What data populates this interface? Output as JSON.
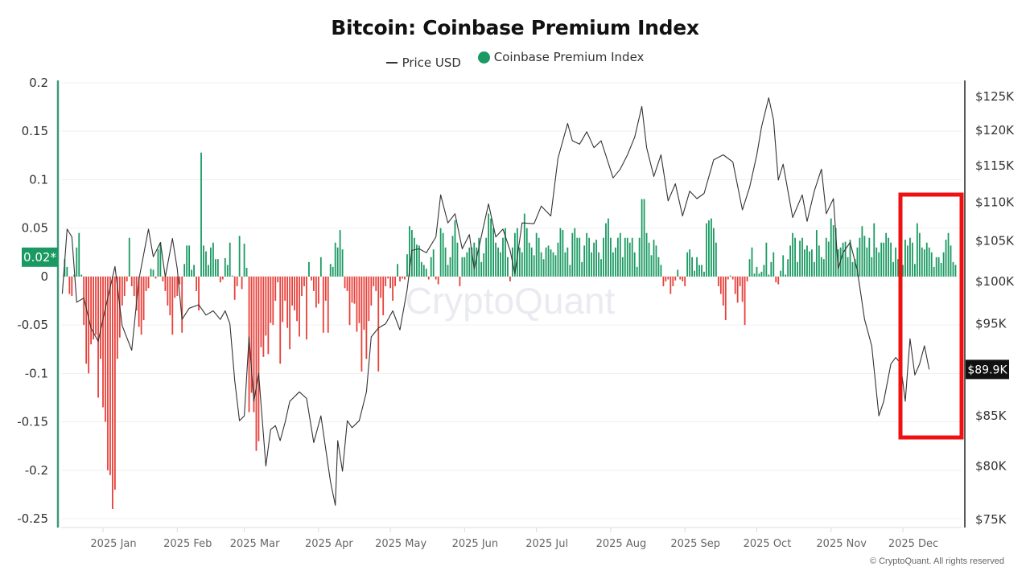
{
  "chart_data": {
    "type": "bar+line",
    "title": "Bitcoin: Coinbase Premium Index",
    "legend": [
      {
        "name": "Price USD",
        "style": "line",
        "color": "#333333"
      },
      {
        "name": "Coinbase Premium Index",
        "style": "dot",
        "color": "#1a9a62"
      }
    ],
    "legend_placement": "top-center",
    "left_axis": {
      "label": "Coinbase Premium Index",
      "ylim": [
        -0.25,
        0.2
      ],
      "ticks": [
        "0.2",
        "0.15",
        "0.1",
        "0.05",
        "0",
        "-0.05",
        "-0.1",
        "-0.15",
        "-0.2",
        "-0.25"
      ],
      "tick_values": [
        0.2,
        0.15,
        0.1,
        0.05,
        0,
        -0.05,
        -0.1,
        -0.15,
        -0.2,
        -0.25
      ],
      "current_badge": "0.02*",
      "current_badge_value": 0.02,
      "badge_color": "#1a9a62"
    },
    "right_axis": {
      "label": "Price USD",
      "scale": "log",
      "ylim": [
        75000,
        127000
      ],
      "ticks": [
        "$125K",
        "$120K",
        "$115K",
        "$110K",
        "$105K",
        "$100K",
        "$95K",
        "$85K",
        "$80K",
        "$75K"
      ],
      "tick_values": [
        125000,
        120000,
        115000,
        110000,
        105000,
        100000,
        95000,
        85000,
        80000,
        75000
      ],
      "current_badge": "$89.9K",
      "current_badge_value": 89900
    },
    "x_axis": {
      "ticks": [
        "2025 Jan",
        "2025 Feb",
        "2025 Mar",
        "2025 Apr",
        "2025 May",
        "2025 Jun",
        "2025 Jul",
        "2025 Aug",
        "2025 Sep",
        "2025 Oct",
        "2025 Nov",
        "2025 Dec"
      ],
      "tick_dates": [
        "2025-01-01",
        "2025-02-01",
        "2025-03-01",
        "2025-04-01",
        "2025-05-01",
        "2025-06-01",
        "2025-07-01",
        "2025-08-01",
        "2025-09-01",
        "2025-10-01",
        "2025-11-01",
        "2025-12-01"
      ],
      "start_date": "2024-12-15",
      "end_date": "2025-12-21"
    },
    "series": [
      {
        "name": "Price USD",
        "type": "line",
        "axis": "right",
        "color": "#333333",
        "points": [
          [
            "2024-12-15",
            98500
          ],
          [
            "2024-12-17",
            106500
          ],
          [
            "2024-12-19",
            105500
          ],
          [
            "2024-12-21",
            97500
          ],
          [
            "2024-12-24",
            98000
          ],
          [
            "2024-12-27",
            94500
          ],
          [
            "2024-12-30",
            93000
          ],
          [
            "2025-01-02",
            96800
          ],
          [
            "2025-01-06",
            101800
          ],
          [
            "2025-01-09",
            94800
          ],
          [
            "2025-01-13",
            92000
          ],
          [
            "2025-01-16",
            100200
          ],
          [
            "2025-01-20",
            106500
          ],
          [
            "2025-01-22",
            103000
          ],
          [
            "2025-01-25",
            104800
          ],
          [
            "2025-01-27",
            100500
          ],
          [
            "2025-01-30",
            105300
          ],
          [
            "2025-02-01",
            101500
          ],
          [
            "2025-02-03",
            95500
          ],
          [
            "2025-02-06",
            96800
          ],
          [
            "2025-02-10",
            97200
          ],
          [
            "2025-02-13",
            96000
          ],
          [
            "2025-02-16",
            96500
          ],
          [
            "2025-02-19",
            95500
          ],
          [
            "2025-02-21",
            96500
          ],
          [
            "2025-02-23",
            95000
          ],
          [
            "2025-02-25",
            88700
          ],
          [
            "2025-02-27",
            84500
          ],
          [
            "2025-03-01",
            85000
          ],
          [
            "2025-03-03",
            93500
          ],
          [
            "2025-03-05",
            86500
          ],
          [
            "2025-03-07",
            89500
          ],
          [
            "2025-03-10",
            80000
          ],
          [
            "2025-03-12",
            83600
          ],
          [
            "2025-03-14",
            84000
          ],
          [
            "2025-03-16",
            82500
          ],
          [
            "2025-03-18",
            84300
          ],
          [
            "2025-03-20",
            86500
          ],
          [
            "2025-03-24",
            87500
          ],
          [
            "2025-03-27",
            86800
          ],
          [
            "2025-03-30",
            82300
          ],
          [
            "2025-04-02",
            85000
          ],
          [
            "2025-04-06",
            78500
          ],
          [
            "2025-04-08",
            76300
          ],
          [
            "2025-04-09",
            82500
          ],
          [
            "2025-04-11",
            79500
          ],
          [
            "2025-04-13",
            84500
          ],
          [
            "2025-04-15",
            83800
          ],
          [
            "2025-04-18",
            84500
          ],
          [
            "2025-04-21",
            87500
          ],
          [
            "2025-04-23",
            93500
          ],
          [
            "2025-04-26",
            94500
          ],
          [
            "2025-04-29",
            95000
          ],
          [
            "2025-05-02",
            96500
          ],
          [
            "2025-05-05",
            94300
          ],
          [
            "2025-05-08",
            99000
          ],
          [
            "2025-05-10",
            103800
          ],
          [
            "2025-05-13",
            104000
          ],
          [
            "2025-05-16",
            103500
          ],
          [
            "2025-05-20",
            105500
          ],
          [
            "2025-05-22",
            111000
          ],
          [
            "2025-05-25",
            107300
          ],
          [
            "2025-05-28",
            108500
          ],
          [
            "2025-05-31",
            104000
          ],
          [
            "2025-06-03",
            105800
          ],
          [
            "2025-06-05",
            101500
          ],
          [
            "2025-06-09",
            107000
          ],
          [
            "2025-06-11",
            109800
          ],
          [
            "2025-06-14",
            105500
          ],
          [
            "2025-06-17",
            106500
          ],
          [
            "2025-06-20",
            103800
          ],
          [
            "2025-06-22",
            100900
          ],
          [
            "2025-06-25",
            107300
          ],
          [
            "2025-06-30",
            107200
          ],
          [
            "2025-07-03",
            109500
          ],
          [
            "2025-07-07",
            108200
          ],
          [
            "2025-07-10",
            116000
          ],
          [
            "2025-07-14",
            121000
          ],
          [
            "2025-07-16",
            118500
          ],
          [
            "2025-07-19",
            118000
          ],
          [
            "2025-07-22",
            119800
          ],
          [
            "2025-07-25",
            117500
          ],
          [
            "2025-07-28",
            118500
          ],
          [
            "2025-08-02",
            113300
          ],
          [
            "2025-08-05",
            114500
          ],
          [
            "2025-08-08",
            116500
          ],
          [
            "2025-08-11",
            119000
          ],
          [
            "2025-08-14",
            123500
          ],
          [
            "2025-08-16",
            117500
          ],
          [
            "2025-08-19",
            113500
          ],
          [
            "2025-08-22",
            116500
          ],
          [
            "2025-08-25",
            110200
          ],
          [
            "2025-08-28",
            112500
          ],
          [
            "2025-08-31",
            108200
          ],
          [
            "2025-09-03",
            111500
          ],
          [
            "2025-09-06",
            110500
          ],
          [
            "2025-09-09",
            111200
          ],
          [
            "2025-09-13",
            115800
          ],
          [
            "2025-09-17",
            116500
          ],
          [
            "2025-09-21",
            115500
          ],
          [
            "2025-09-25",
            109000
          ],
          [
            "2025-09-28",
            112000
          ],
          [
            "2025-10-01",
            116500
          ],
          [
            "2025-10-03",
            120500
          ],
          [
            "2025-10-06",
            124800
          ],
          [
            "2025-10-08",
            121500
          ],
          [
            "2025-10-10",
            113000
          ],
          [
            "2025-10-12",
            115200
          ],
          [
            "2025-10-16",
            108000
          ],
          [
            "2025-10-20",
            111000
          ],
          [
            "2025-10-22",
            107500
          ],
          [
            "2025-10-25",
            111500
          ],
          [
            "2025-10-28",
            114500
          ],
          [
            "2025-10-30",
            108500
          ],
          [
            "2025-11-02",
            110500
          ],
          [
            "2025-11-04",
            101500
          ],
          [
            "2025-11-06",
            103500
          ],
          [
            "2025-11-09",
            104800
          ],
          [
            "2025-11-12",
            101300
          ],
          [
            "2025-11-15",
            95500
          ],
          [
            "2025-11-18",
            92500
          ],
          [
            "2025-11-21",
            85000
          ],
          [
            "2025-11-23",
            86500
          ],
          [
            "2025-11-26",
            90500
          ],
          [
            "2025-11-28",
            91200
          ],
          [
            "2025-11-30",
            90600
          ],
          [
            "2025-12-02",
            86500
          ],
          [
            "2025-12-04",
            93300
          ],
          [
            "2025-12-06",
            89300
          ],
          [
            "2025-12-08",
            90500
          ],
          [
            "2025-12-10",
            92500
          ],
          [
            "2025-12-12",
            89900
          ]
        ]
      },
      {
        "name": "Coinbase Premium Index",
        "type": "bar",
        "axis": "left",
        "positive_color": "#1a9a62",
        "negative_color": "#e8403a",
        "start_date": "2024-12-16",
        "values": [
          0.018,
          0.01,
          -0.018,
          -0.02,
          0.002,
          0.03,
          0.045,
          0.002,
          -0.05,
          -0.09,
          -0.1,
          -0.07,
          -0.065,
          -0.06,
          -0.125,
          -0.085,
          -0.135,
          -0.15,
          -0.2,
          -0.205,
          -0.24,
          -0.22,
          -0.085,
          -0.063,
          -0.03,
          -0.02,
          -0.005,
          0.04,
          -0.01,
          -0.02,
          -0.035,
          -0.052,
          -0.06,
          -0.045,
          -0.015,
          -0.012,
          0.008,
          0.007,
          -0.002,
          0.028,
          0.035,
          -0.005,
          -0.015,
          -0.03,
          -0.04,
          -0.06,
          -0.022,
          -0.02,
          -0.008,
          -0.058,
          0.013,
          0.032,
          0.032,
          0.007,
          0.012,
          -0.015,
          -0.035,
          0.128,
          0.032,
          0.026,
          0.012,
          0.03,
          0.035,
          0.018,
          0.018,
          -0.006,
          -0.003,
          0.019,
          0.012,
          0.035,
          0.001,
          -0.024,
          -0.01,
          0.042,
          -0.013,
          0.034,
          0.009,
          -0.14,
          -0.12,
          -0.14,
          -0.18,
          -0.17,
          -0.073,
          -0.083,
          -0.061,
          -0.08,
          -0.048,
          -0.05,
          -0.025,
          -0.006,
          -0.09,
          -0.047,
          -0.025,
          -0.053,
          -0.075,
          -0.03,
          -0.035,
          -0.046,
          -0.062,
          -0.02,
          -0.01,
          -0.065,
          0.015,
          -0.004,
          -0.015,
          -0.032,
          -0.028,
          0.02,
          -0.058,
          -0.025,
          -0.058,
          0.013,
          0.01,
          0.035,
          0.03,
          0.048,
          0.028,
          -0.012,
          -0.015,
          -0.05,
          -0.027,
          -0.028,
          -0.057,
          -0.048,
          -0.098,
          -0.055,
          -0.085,
          -0.046,
          -0.03,
          -0.01,
          -0.015,
          -0.098,
          -0.022,
          -0.04,
          -0.01,
          -0.002,
          -0.012,
          -0.025,
          -0.01,
          0.013,
          -0.005,
          -0.002,
          -0.003,
          0.023,
          0.052,
          0.048,
          0.04,
          0.033,
          0.032,
          0.015,
          0.012,
          0.008,
          -0.003,
          0.02,
          0.028,
          -0.003,
          -0.008,
          0.05,
          0.045,
          0.03,
          0.012,
          0.02,
          0.042,
          0.058,
          0.035,
          -0.01,
          0.02,
          0.02,
          0.025,
          0.03,
          0.03,
          0.035,
          0.03,
          0.04,
          0.015,
          0.024,
          0.04,
          0.065,
          0.06,
          0.05,
          0.035,
          0.03,
          0.025,
          0.04,
          0.05,
          0.02,
          -0.005,
          0.03,
          0.045,
          0.05,
          0.03,
          0.025,
          0.065,
          0.05,
          0.035,
          0.03,
          0.022,
          0.045,
          0.04,
          0.025,
          0.018,
          0.03,
          0.032,
          0.028,
          0.025,
          0.022,
          0.035,
          0.05,
          0.048,
          0.025,
          0.03,
          0.012,
          0.045,
          0.05,
          0.04,
          0.04,
          0.015,
          0.032,
          0.045,
          0.04,
          0.025,
          0.035,
          0.038,
          0.025,
          0.018,
          0.04,
          0.055,
          0.06,
          0.04,
          0.025,
          0.03,
          0.04,
          0.045,
          0.02,
          0.04,
          0.04,
          0.035,
          0.04,
          0.025,
          0.01,
          0.04,
          0.08,
          0.08,
          0.045,
          0.035,
          0.022,
          0.038,
          0.032,
          0.02,
          0.012,
          -0.01,
          -0.005,
          -0.003,
          -0.018,
          -0.01,
          -0.004,
          0.007,
          -0.003,
          -0.005,
          -0.01,
          0.025,
          0.028,
          0.02,
          0.006,
          0.02,
          0.012,
          0.012,
          0.005,
          0.055,
          0.058,
          0.06,
          0.05,
          0.035,
          -0.01,
          -0.018,
          -0.03,
          -0.045,
          -0.003,
          0.001,
          -0.003,
          -0.018,
          -0.027,
          -0.01,
          -0.026,
          -0.05,
          -0.005,
          0.018,
          0.03,
          0.003,
          0.01,
          0.003,
          0.005,
          0.012,
          0.035,
          0.002,
          0.015,
          0.025,
          -0.006,
          -0.008,
          0.006,
          0.022,
          0.002,
          0.018,
          0.032,
          0.045,
          0.04,
          0.015,
          0.037,
          0.04,
          0.028,
          0.032,
          0.026,
          0.028,
          0.015,
          0.048,
          0.032,
          0.02,
          0.018,
          0.04,
          0.036,
          0.06,
          0.053,
          0.05,
          0.028,
          0.03,
          0.035,
          0.036,
          0.02,
          0.038,
          0.015,
          0.018,
          0.03,
          0.04,
          0.052,
          0.042,
          0.03,
          0.04,
          0.02,
          0.055,
          0.03,
          0.025,
          0.035,
          0.035,
          0.045,
          0.04,
          0.035,
          0.015,
          0.03,
          0.018,
          0.02,
          0.012,
          0.038,
          0.032,
          0.04,
          0.035,
          0.013,
          0.055,
          0.045,
          0.03,
          0.028,
          0.035,
          0.03,
          0.025,
          0.01,
          0.02,
          0.02,
          0.014,
          0.025,
          0.038,
          0.045,
          0.032,
          0.015,
          0.012,
          0.02,
          0.018,
          0.022,
          0.007,
          0.01,
          0.012,
          0.005,
          0.02,
          0.03,
          0.025,
          0.018,
          0.02,
          0.018,
          0.008,
          0.028,
          0.026,
          0.025,
          0.012,
          0.005,
          0.005,
          0.004,
          0.008,
          -0.01,
          -0.022,
          -0.05,
          -0.045,
          -0.055,
          -0.08,
          -0.022,
          -0.035,
          -0.02,
          -0.03,
          -0.045,
          -0.04,
          -0.06,
          -0.05,
          -0.05,
          -0.055,
          -0.065,
          -0.06,
          -0.05,
          -0.04,
          -0.06,
          -0.105,
          -0.125,
          -0.09,
          -0.12,
          -0.08,
          -0.07,
          -0.045,
          -0.038,
          -0.03,
          -0.025,
          -0.015,
          -0.012,
          -0.006,
          0.008,
          0.02,
          0.028,
          0.018,
          0.03,
          0.025,
          0.015,
          0.02,
          0.033,
          0.018,
          0.012,
          0.02,
          0.01,
          0.025,
          0.02
        ]
      }
    ],
    "highlight_box": {
      "from_date": "2025-11-20",
      "to_date": "2025-12-13",
      "from_price": 112000,
      "to_price": 83500,
      "color": "#ee1111"
    },
    "watermark": "CryptoQuant"
  },
  "footer": {
    "copyright": "© CryptoQuant. All rights reserved"
  }
}
